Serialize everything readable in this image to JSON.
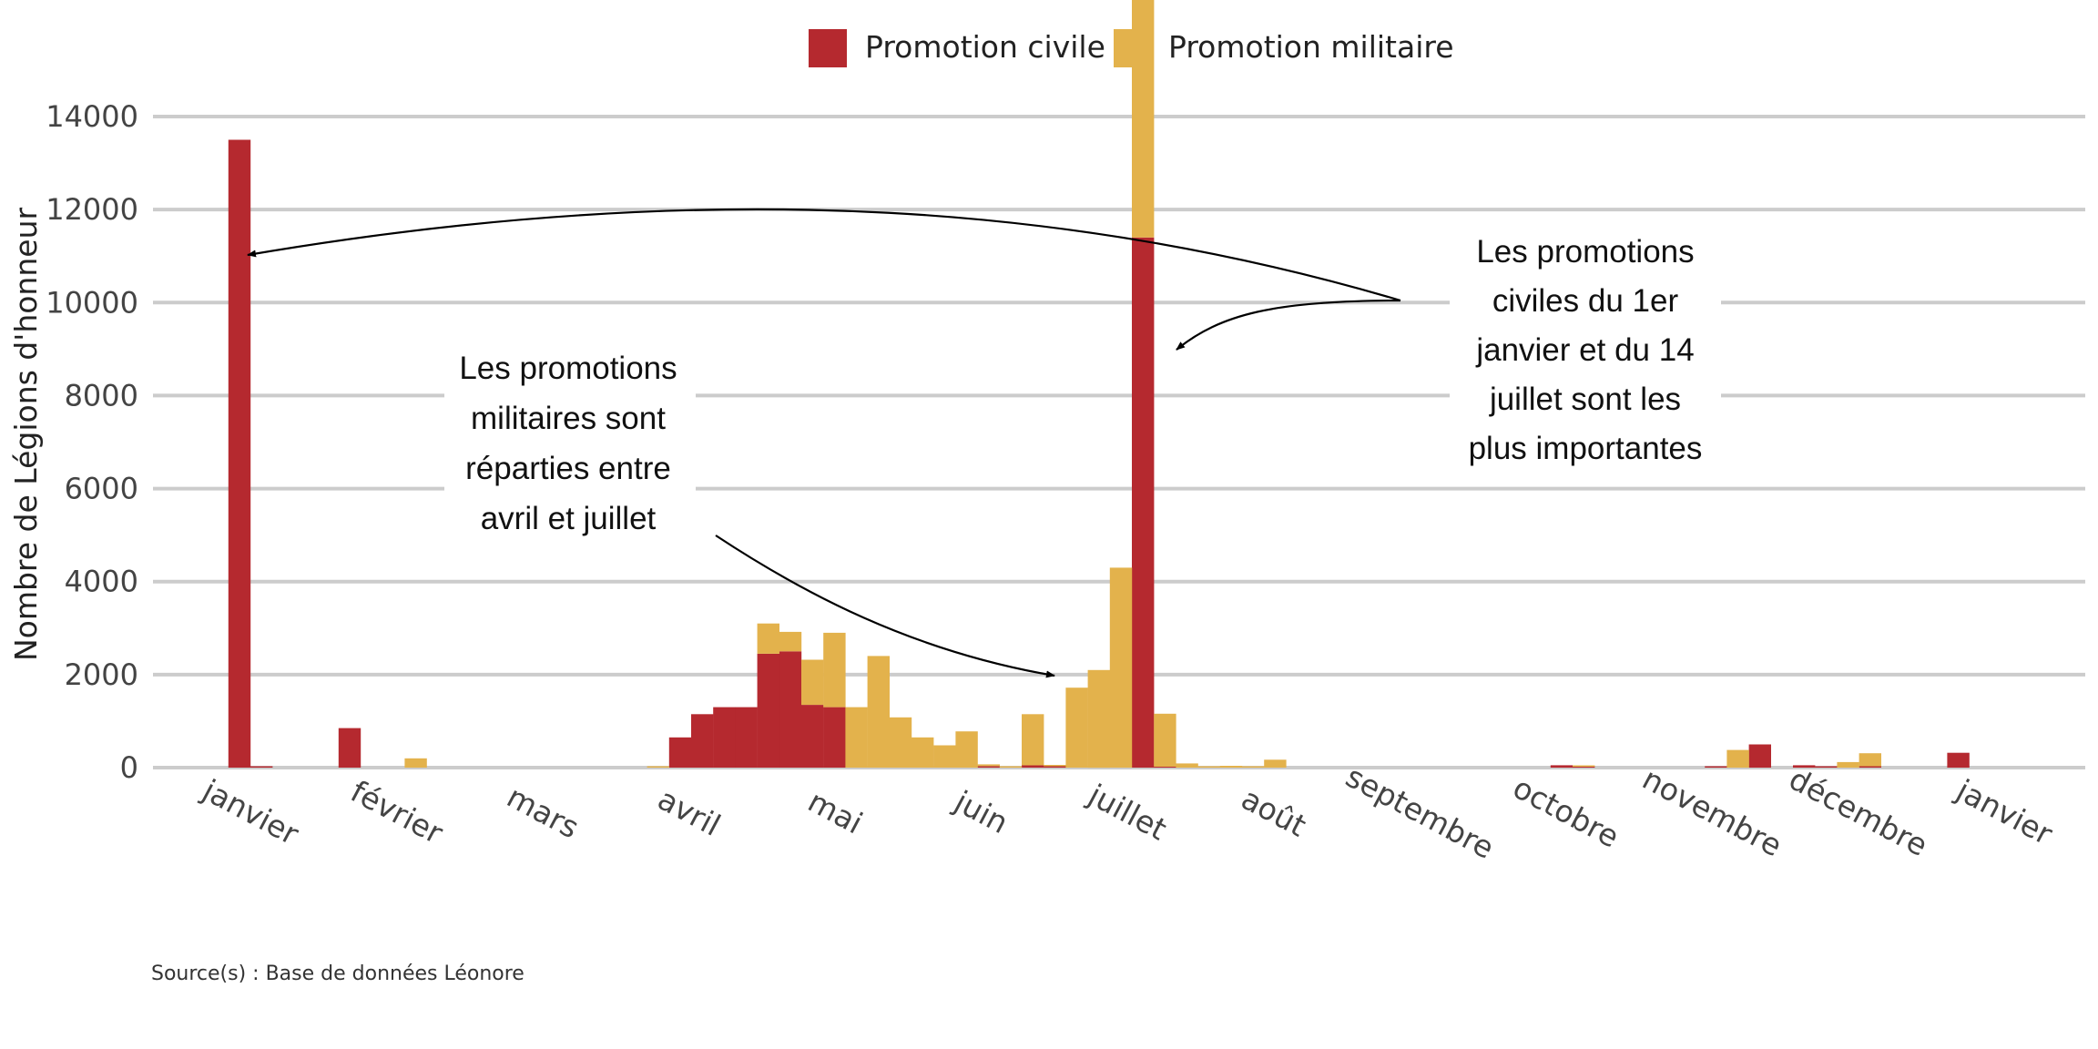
{
  "chart_data": {
    "type": "bar",
    "stacked": true,
    "ylabel": "Nombre de Légions d'honneur",
    "xlabel": "",
    "ylim": [
      0,
      14000
    ],
    "y_ticks": [
      0,
      2000,
      4000,
      6000,
      8000,
      10000,
      12000,
      14000
    ],
    "grid": "horizontal",
    "legend_position": "top-center",
    "x_tick_labels": [
      "janvier",
      "février",
      "mars",
      "avril",
      "mai",
      "juin",
      "juillet",
      "août",
      "septembre",
      "octobre",
      "novembre",
      "décembre",
      "janvier"
    ],
    "weeks_per_month_label": 4.3,
    "series": [
      {
        "name": "Promotion civile",
        "color": "#b5292f",
        "points": [
          {
            "week": 1,
            "value": 13500
          },
          {
            "week": 2,
            "value": 30
          },
          {
            "week": 6,
            "value": 850
          },
          {
            "week": 21,
            "value": 650
          },
          {
            "week": 22,
            "value": 1150
          },
          {
            "week": 23,
            "value": 1300
          },
          {
            "week": 24,
            "value": 1300
          },
          {
            "week": 25,
            "value": 2450
          },
          {
            "week": 26,
            "value": 2500
          },
          {
            "week": 27,
            "value": 1350
          },
          {
            "week": 28,
            "value": 1300
          },
          {
            "week": 35,
            "value": 30
          },
          {
            "week": 37,
            "value": 50
          },
          {
            "week": 38,
            "value": 30
          },
          {
            "week": 42,
            "value": 11400
          },
          {
            "week": 43,
            "value": 20
          },
          {
            "week": 61,
            "value": 50
          },
          {
            "week": 62,
            "value": 20
          },
          {
            "week": 68,
            "value": 20
          },
          {
            "week": 70,
            "value": 500
          },
          {
            "week": 72,
            "value": 50
          },
          {
            "week": 73,
            "value": 30
          },
          {
            "week": 75,
            "value": 30
          },
          {
            "week": 79,
            "value": 320
          }
        ]
      },
      {
        "name": "Promotion militaire",
        "color": "#e3b24c",
        "points": [
          {
            "week": 9,
            "value": 200
          },
          {
            "week": 20,
            "value": 20
          },
          {
            "week": 25,
            "value": 650
          },
          {
            "week": 26,
            "value": 420
          },
          {
            "week": 27,
            "value": 970
          },
          {
            "week": 28,
            "value": 1600
          },
          {
            "week": 29,
            "value": 1300
          },
          {
            "week": 30,
            "value": 2400
          },
          {
            "week": 31,
            "value": 1080
          },
          {
            "week": 32,
            "value": 650
          },
          {
            "week": 33,
            "value": 480
          },
          {
            "week": 34,
            "value": 780
          },
          {
            "week": 35,
            "value": 40
          },
          {
            "week": 36,
            "value": 10
          },
          {
            "week": 37,
            "value": 1100
          },
          {
            "week": 38,
            "value": 20
          },
          {
            "week": 39,
            "value": 1720
          },
          {
            "week": 40,
            "value": 2100
          },
          {
            "week": 41,
            "value": 4300
          },
          {
            "week": 42,
            "value": 8150
          },
          {
            "week": 43,
            "value": 1140
          },
          {
            "week": 44,
            "value": 90
          },
          {
            "week": 45,
            "value": 20
          },
          {
            "week": 46,
            "value": 40
          },
          {
            "week": 47,
            "value": 30
          },
          {
            "week": 48,
            "value": 170
          },
          {
            "week": 62,
            "value": 20
          },
          {
            "week": 69,
            "value": 380
          },
          {
            "week": 74,
            "value": 120
          },
          {
            "week": 75,
            "value": 280
          }
        ]
      }
    ],
    "annotations": [
      {
        "id": "civile",
        "lines": [
          "Les promotions",
          "civiles du 1er",
          "janvier et du 14",
          "juillet sont les",
          "plus importantes"
        ]
      },
      {
        "id": "militaire",
        "lines": [
          "Les promotions",
          "militaires sont",
          "réparties entre",
          "avril et juillet"
        ]
      }
    ],
    "caption_lines": [
      "Source(s) : Base de données Léonore",
      "",
      ""
    ]
  }
}
